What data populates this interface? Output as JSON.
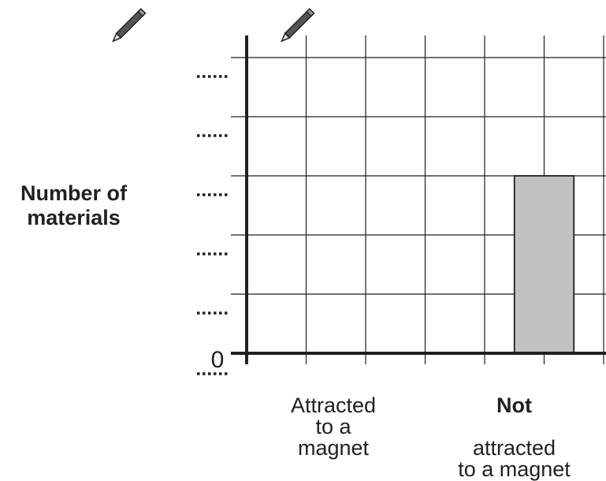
{
  "chart_data": {
    "type": "bar",
    "title": "",
    "ylabel": "Number of\nmaterials",
    "xlabel": "",
    "categories": [
      {
        "bold": "",
        "label": "Attracted\nto a\nmagnet"
      },
      {
        "bold": "Not",
        "label": "attracted\nto a magnet"
      }
    ],
    "values": [
      0,
      3
    ],
    "ylim": [
      0,
      5
    ],
    "yticks": [
      "0",
      "",
      "",
      "",
      "",
      ""
    ],
    "grid": true,
    "bar_color": "#c2c2c4",
    "bar_outline": "#231f20",
    "axis_color": "#231f20",
    "grid_color": "#231f20"
  },
  "decorations": [
    "pencil-icon",
    "pencil-icon"
  ]
}
